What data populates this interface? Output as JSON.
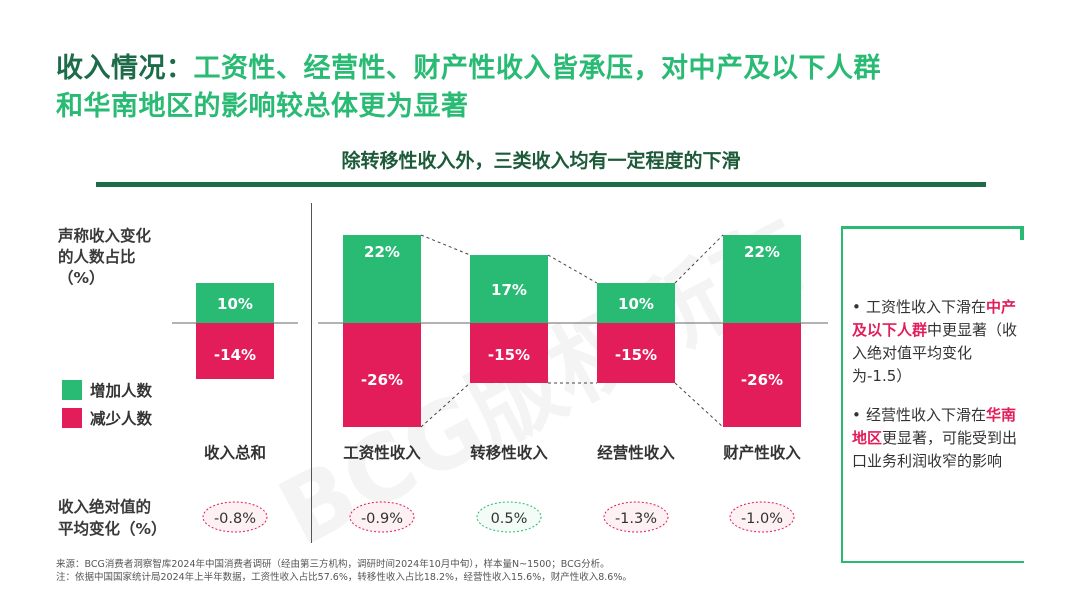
{
  "title": {
    "line1_a": "收入情况：",
    "line1_b": "工资性、经营性、财产性收入皆承压，对中产及以下人群",
    "line2": "和华南地区的影响较总体更为显著"
  },
  "subtitle": "除转移性收入外，三类收入均有一定程度的下滑",
  "y_label_lines": [
    "声称收入变化",
    "的人数占比",
    "（%）"
  ],
  "legend": [
    {
      "label": "增加人数",
      "color": "#29ba74"
    },
    {
      "label": "减少人数",
      "color": "#e31c5a"
    }
  ],
  "row_label_lines": [
    "收入绝对值的",
    "平均变化（%）"
  ],
  "colors": {
    "increase": "#29ba74",
    "decrease": "#e31c5a",
    "dark_green": "#1d6b49"
  },
  "chart_data": {
    "type": "bar",
    "categories": [
      "收入总和",
      "工资性收入",
      "转移性收入",
      "经营性收入",
      "财产性收入"
    ],
    "series": [
      {
        "name": "增加人数",
        "values": [
          10,
          22,
          17,
          10,
          22
        ]
      },
      {
        "name": "减少人数",
        "values": [
          -14,
          -26,
          -15,
          -15,
          -26
        ]
      }
    ],
    "value_labels": {
      "increase": [
        "10%",
        "22%",
        "17%",
        "10%",
        "22%"
      ],
      "decrease": [
        "-14%",
        "-26%",
        "-15%",
        "-15%",
        "-26%"
      ]
    },
    "avg_change": [
      "-0.8%",
      "-0.9%",
      "0.5%",
      "-1.3%",
      "-1.0%"
    ],
    "avg_change_sign": [
      "neg",
      "neg",
      "pos",
      "neg",
      "neg"
    ],
    "stacked": true,
    "ylim": [
      -26,
      22
    ]
  },
  "callout": {
    "bullet1": {
      "pre": "工资性收入下滑在",
      "highlight": "中产及以下人群",
      "post": "中更显著（收入绝对值平均变化为-1.5）"
    },
    "bullet2": {
      "pre": "经营性收入下滑在",
      "highlight": "华南地区",
      "post": "更显著，可能受到出口业务利润收窄的影响"
    }
  },
  "watermark": "BCG版权所有",
  "footnotes": {
    "line1": "来源：BCG消费者洞察智库2024年中国消费者调研（经由第三方机构，调研时间2024年10月中旬），样本量N~1500；BCG分析。",
    "line2": "注：依据中国国家统计局2024年上半年数据，工资性收入占比57.6%，转移性收入占比18.2%，经营性收入15.6%，财产性收入8.6%。"
  }
}
